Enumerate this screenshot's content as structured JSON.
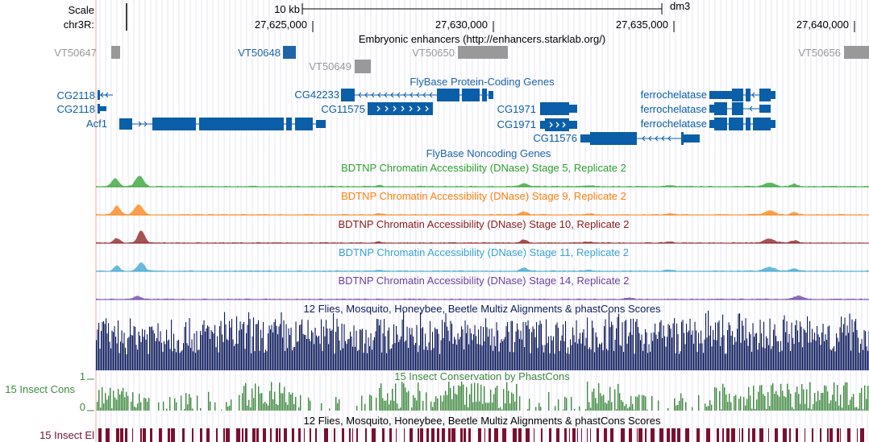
{
  "header": {
    "scale_label": "Scale",
    "scale_bar_label": "10 kb",
    "assembly": "dm3",
    "chrom_label": "chr3R:",
    "positions": [
      "27,625,000",
      "27,630,000",
      "27,635,000",
      "27,640,000"
    ]
  },
  "colors": {
    "gene": "#0b5ea8",
    "enhancer_gray": "#999999",
    "enhancer_blue": "#1f64a8",
    "stage5": "#2ca02c",
    "stage9": "#ff7f0e",
    "stage10": "#8b1a1a",
    "stage11": "#3aa3cf",
    "stage14": "#6b3fa0",
    "multiz": "#0d1a5c",
    "phastcons": "#3f8a3f",
    "elements": "#7a1030"
  },
  "tracks": {
    "enhancers": {
      "title": "Embryonic enhancers (http://enhancers.starklab.org/)",
      "items": [
        "VT50647",
        "VT50648",
        "VT50649",
        "VT50650",
        "VT50656"
      ]
    },
    "flybase_coding": {
      "title": "FlyBase Protein-Coding Genes",
      "genes": [
        "CG2118",
        "CG2118",
        "Acf1",
        "CG42233",
        "CG11575",
        "CG1971",
        "CG1971",
        "CG11576",
        "ferrochelatase",
        "ferrochelatase",
        "ferrochelatase"
      ]
    },
    "flybase_noncoding": {
      "title": "FlyBase Noncoding Genes"
    },
    "dnase": [
      {
        "title": "BDTNP Chromatin Accessibility (DNase) Stage 5, Replicate 2"
      },
      {
        "title": "BDTNP Chromatin Accessibility (DNase) Stage 9, Replicate 2"
      },
      {
        "title": "BDTNP Chromatin Accessibility (DNase) Stage 10, Replicate 2"
      },
      {
        "title": "BDTNP Chromatin Accessibility (DNase) Stage 11, Replicate 2"
      },
      {
        "title": "BDTNP Chromatin Accessibility (DNase) Stage 14, Replicate 2"
      }
    ],
    "multiz": {
      "title": "12 Flies, Mosquito, Honeybee, Beetle Multiz Alignments & phastCons Scores"
    },
    "phastcons": {
      "title": "15 Insect Conservation by PhastCons",
      "side_label": "15 Insect Cons",
      "y_max": "1",
      "y_min": "0"
    },
    "elements": {
      "title": "12 Flies, Mosquito, Honeybee, Beetle Multiz Alignments & phastCons Scores",
      "side_label": "15 Insect El"
    }
  }
}
